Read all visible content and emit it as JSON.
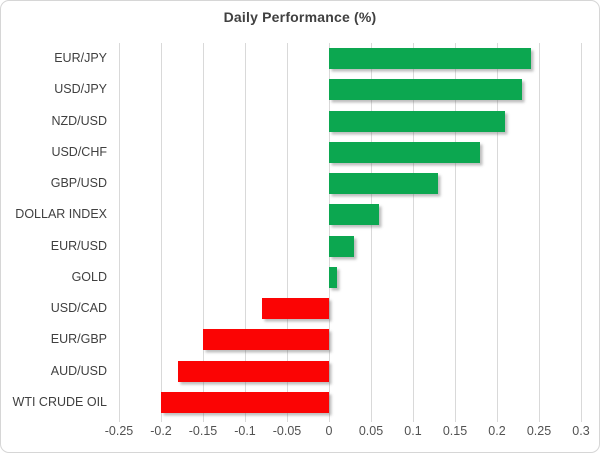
{
  "chart_data": {
    "type": "bar",
    "orientation": "horizontal",
    "title": "Daily Performance (%)",
    "categories": [
      "EUR/JPY",
      "USD/JPY",
      "NZD/USD",
      "USD/CHF",
      "GBP/USD",
      "DOLLAR INDEX",
      "EUR/USD",
      "GOLD",
      "USD/CAD",
      "EUR/GBP",
      "AUD/USD",
      "WTI CRUDE OIL"
    ],
    "values": [
      0.24,
      0.23,
      0.21,
      0.18,
      0.13,
      0.06,
      0.03,
      0.01,
      -0.08,
      -0.15,
      -0.18,
      -0.2
    ],
    "xlim": [
      -0.25,
      0.3
    ],
    "x_tick_values": [
      -0.25,
      -0.2,
      -0.15,
      -0.1,
      -0.05,
      0,
      0.05,
      0.1,
      0.15,
      0.2,
      0.25,
      0.3
    ],
    "x_tick_labels": [
      "-0.25",
      "-0.2",
      "-0.15",
      "-0.1",
      "-0.05",
      "0",
      "0.05",
      "0.1",
      "0.15",
      "0.2",
      "0.25",
      "0.3"
    ],
    "grid": true,
    "legend": false,
    "colors": {
      "positive": "#0ca750",
      "negative": "#fb0404",
      "gridline": "#d9d9d9",
      "title_text": "#404040",
      "label_text": "#404040",
      "tick_text": "#525252"
    }
  }
}
